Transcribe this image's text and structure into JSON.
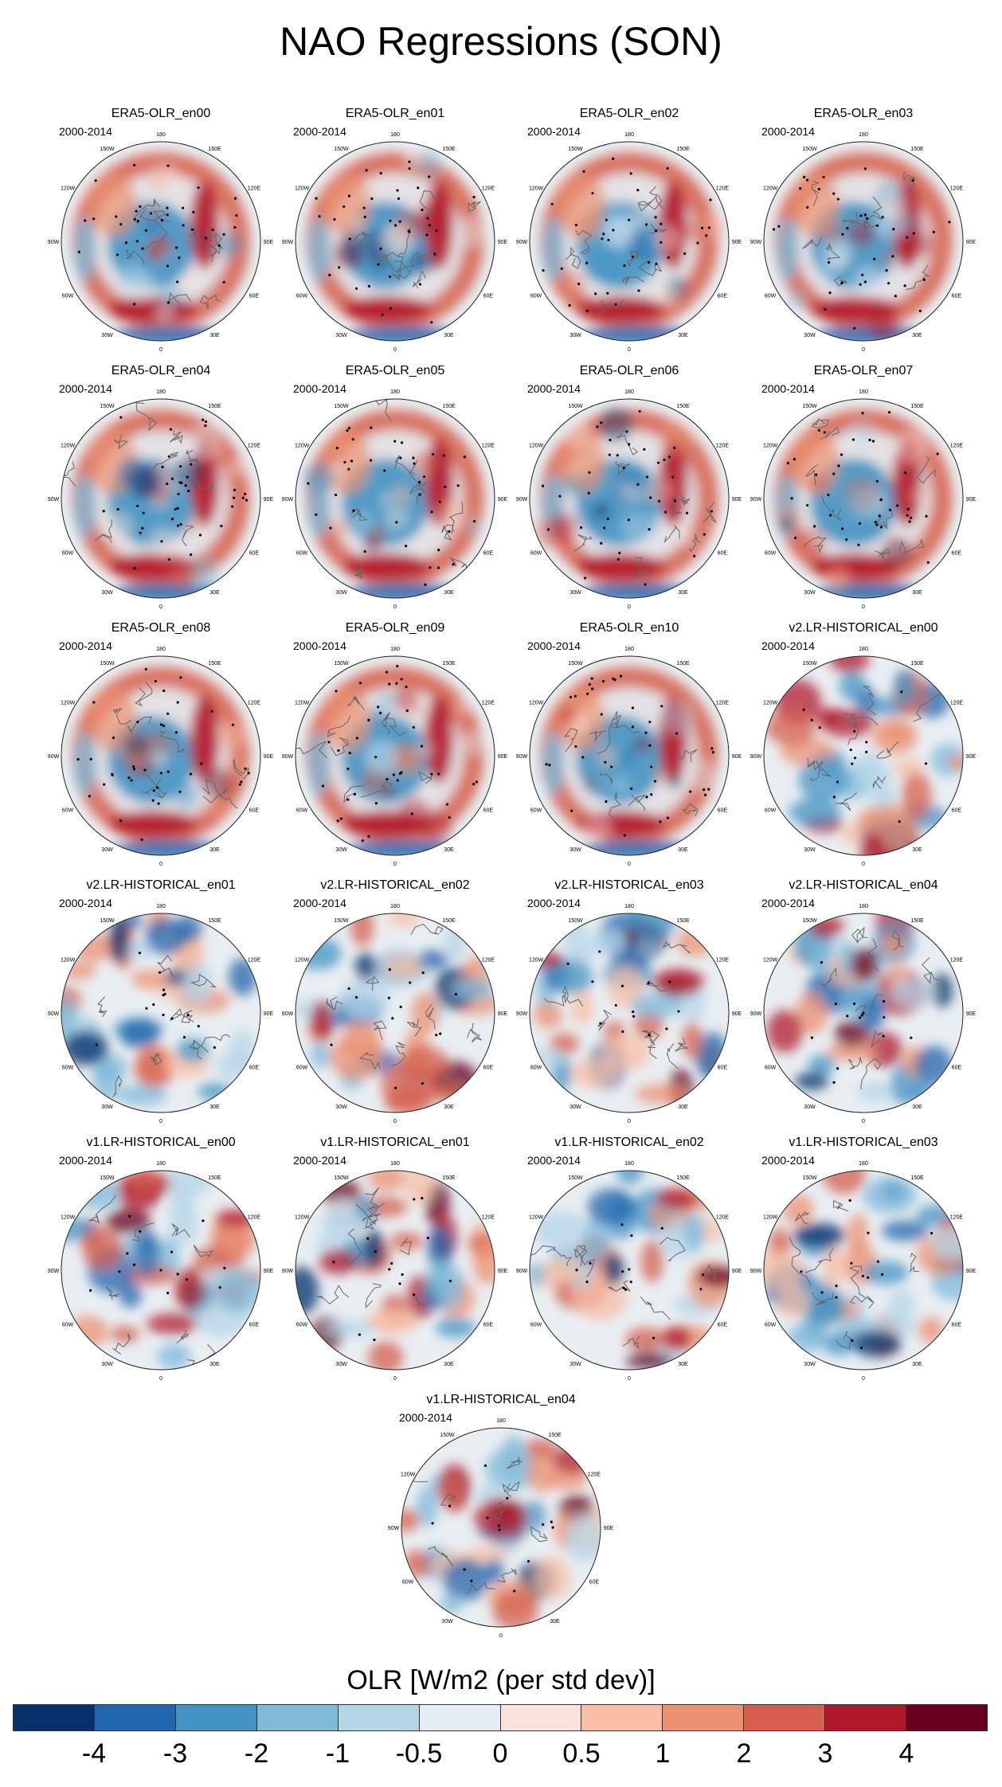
{
  "title": "NAO Regressions (SON)",
  "period": "2000-2014",
  "lon_labels": [
    "180",
    "150E",
    "120E",
    "90E",
    "60E",
    "30E",
    "0",
    "30W",
    "60W",
    "90W",
    "120W",
    "150W"
  ],
  "colorbar": {
    "label": "OLR [W/m2 (per std dev)]",
    "ticks": [
      "-4",
      "-3",
      "-2",
      "-1",
      "-0.5",
      "0",
      "0.5",
      "1",
      "2",
      "3",
      "4"
    ],
    "colors": [
      "#08306b",
      "#2166ac",
      "#4393c3",
      "#7fbad9",
      "#b5d5e8",
      "#e5eef4",
      "#f9e3dc",
      "#f8bfa6",
      "#ec9271",
      "#d6604d",
      "#b2182b",
      "#67001f"
    ]
  },
  "panels": [
    {
      "title": "ERA5-OLR_en00",
      "group": "ERA5"
    },
    {
      "title": "ERA5-OLR_en01",
      "group": "ERA5"
    },
    {
      "title": "ERA5-OLR_en02",
      "group": "ERA5"
    },
    {
      "title": "ERA5-OLR_en03",
      "group": "ERA5"
    },
    {
      "title": "ERA5-OLR_en04",
      "group": "ERA5"
    },
    {
      "title": "ERA5-OLR_en05",
      "group": "ERA5"
    },
    {
      "title": "ERA5-OLR_en06",
      "group": "ERA5"
    },
    {
      "title": "ERA5-OLR_en07",
      "group": "ERA5"
    },
    {
      "title": "ERA5-OLR_en08",
      "group": "ERA5"
    },
    {
      "title": "ERA5-OLR_en09",
      "group": "ERA5"
    },
    {
      "title": "ERA5-OLR_en10",
      "group": "ERA5"
    },
    {
      "title": "v2.LR-HISTORICAL_en00",
      "group": "model"
    },
    {
      "title": "v2.LR-HISTORICAL_en01",
      "group": "model"
    },
    {
      "title": "v2.LR-HISTORICAL_en02",
      "group": "model"
    },
    {
      "title": "v2.LR-HISTORICAL_en03",
      "group": "model"
    },
    {
      "title": "v2.LR-HISTORICAL_en04",
      "group": "model"
    },
    {
      "title": "v1.LR-HISTORICAL_en00",
      "group": "model"
    },
    {
      "title": "v1.LR-HISTORICAL_en01",
      "group": "model"
    },
    {
      "title": "v1.LR-HISTORICAL_en02",
      "group": "model"
    },
    {
      "title": "v1.LR-HISTORICAL_en03",
      "group": "model"
    },
    {
      "title": "v1.LR-HISTORICAL_en04",
      "group": "model"
    }
  ],
  "chart_data": {
    "type": "heatmap",
    "title": "NAO Regressions (SON)",
    "colorbar_label": "OLR [W/m2 (per std dev)]",
    "levels": [
      -4,
      -3,
      -2,
      -1,
      -0.5,
      0,
      0.5,
      1,
      2,
      3,
      4
    ],
    "projection": "polar stereographic (Northern Hemisphere)",
    "panel_count": 21
  }
}
